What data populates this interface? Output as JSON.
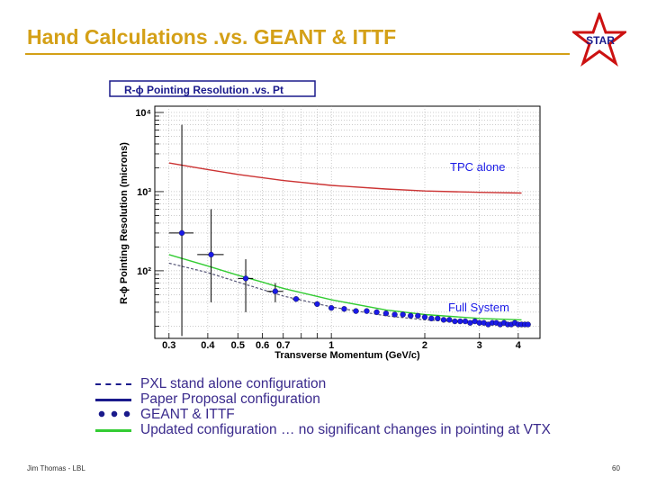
{
  "slide": {
    "title": "Hand Calculations .vs. GEANT & ITTF",
    "footer_left": "Jim Thomas - LBL",
    "page_number": "60",
    "logo_text": "STAR",
    "title_color": "#d4a017"
  },
  "legend": [
    {
      "symbol": "dashed",
      "color": "#1a1a8c",
      "label": "PXL stand alone configuration"
    },
    {
      "symbol": "solid",
      "color": "#1a1a8c",
      "label": "Paper Proposal configuration"
    },
    {
      "symbol": "dots",
      "color": "#1a1a8c",
      "label": "GEANT & ITTF"
    },
    {
      "symbol": "solid",
      "color": "#33cc33",
      "label": "Updated configuration … no significant changes in pointing at VTX"
    }
  ],
  "chart_data": {
    "type": "scatter",
    "title": "R-ϕ Pointing Resolution .vs. Pt",
    "xlabel": "Transverse Momentum (GeV/c)",
    "ylabel": "R-ϕ Pointing Resolution (microns)",
    "x_scale": "log",
    "y_scale": "log",
    "xlim": [
      0.27,
      4.7
    ],
    "ylim": [
      14,
      12000
    ],
    "grid": true,
    "x_ticks": [
      0.3,
      0.4,
      0.5,
      0.6,
      0.7,
      1,
      2,
      3,
      4
    ],
    "x_tick_labels": [
      "0.3",
      "0.4",
      "0.5",
      "0.6",
      "0.7",
      "1",
      "2",
      "3",
      "4"
    ],
    "y_ticks": [
      100,
      1000,
      10000
    ],
    "y_tick_labels": [
      "10²",
      "10³",
      "10⁴"
    ],
    "annotations": [
      {
        "text": "TPC alone",
        "x": 3.1,
        "y": 1300
      },
      {
        "text": "Full System",
        "x": 3.1,
        "y": 50
      }
    ],
    "series": [
      {
        "name": "TPC alone",
        "color": "#cc3333",
        "style": "solid",
        "x": [
          0.3,
          0.4,
          0.5,
          0.7,
          1,
          1.5,
          2,
          3,
          4.1
        ],
        "y": [
          2300,
          1900,
          1650,
          1380,
          1200,
          1080,
          1020,
          980,
          960
        ]
      },
      {
        "name": "Updated configuration",
        "color": "#33cc33",
        "style": "solid",
        "x": [
          0.3,
          0.4,
          0.5,
          0.6,
          0.7,
          1,
          1.5,
          2,
          3,
          4.1
        ],
        "y": [
          160,
          115,
          88,
          72,
          60,
          43,
          32,
          28,
          25,
          24
        ]
      },
      {
        "name": "PXL stand alone configuration",
        "color": "#555577",
        "style": "dashed",
        "x": [
          0.3,
          0.4,
          0.5,
          0.6,
          0.7,
          1,
          1.5,
          2,
          3,
          4.1
        ],
        "y": [
          125,
          95,
          72,
          58,
          48,
          35,
          27,
          24,
          22,
          21
        ]
      },
      {
        "name": "GEANT & ITTF",
        "color": "#1a1ae6",
        "style": "points",
        "x": [
          0.33,
          0.41,
          0.53,
          0.66,
          0.77,
          0.9,
          1.0,
          1.1,
          1.2,
          1.3,
          1.4,
          1.5,
          1.6,
          1.7,
          1.8,
          1.9,
          2.0,
          2.1,
          2.2,
          2.3,
          2.4,
          2.5,
          2.6,
          2.7,
          2.8,
          2.9,
          3.0,
          3.1,
          3.2,
          3.3,
          3.4,
          3.5,
          3.6,
          3.7,
          3.8,
          3.9,
          4.0,
          4.1,
          4.2,
          4.3
        ],
        "y": [
          300,
          160,
          80,
          55,
          44,
          38,
          34,
          33,
          31,
          31,
          30,
          29,
          28,
          28,
          27,
          27,
          26,
          25,
          25,
          24,
          24,
          23,
          23,
          23,
          22,
          23,
          22,
          22,
          21,
          22,
          22,
          21,
          22,
          21,
          21,
          22,
          21,
          21,
          21,
          21
        ],
        "xerr": [
          0.03,
          0.04,
          0.03,
          0.04,
          0.02,
          0.02,
          0,
          0,
          0,
          0,
          0,
          0,
          0,
          0,
          0,
          0,
          0,
          0,
          0,
          0,
          0,
          0,
          0,
          0,
          0,
          0,
          0,
          0,
          0,
          0,
          0,
          0,
          0,
          0,
          0,
          0,
          0,
          0,
          0,
          0
        ],
        "ylow": [
          15,
          40,
          30,
          40,
          0,
          0,
          0,
          0,
          0,
          0,
          0,
          0,
          0,
          0,
          0,
          0,
          0,
          0,
          0,
          0,
          0,
          0,
          0,
          0,
          0,
          0,
          0,
          0,
          0,
          0,
          0,
          0,
          0,
          0,
          0,
          0,
          0,
          0,
          0,
          0
        ],
        "yhigh": [
          7000,
          600,
          140,
          70,
          0,
          0,
          0,
          0,
          0,
          0,
          0,
          0,
          0,
          0,
          0,
          0,
          0,
          0,
          0,
          0,
          0,
          0,
          0,
          0,
          0,
          0,
          0,
          0,
          0,
          0,
          0,
          0,
          0,
          0,
          0,
          0,
          0,
          0,
          0,
          0
        ]
      }
    ]
  }
}
